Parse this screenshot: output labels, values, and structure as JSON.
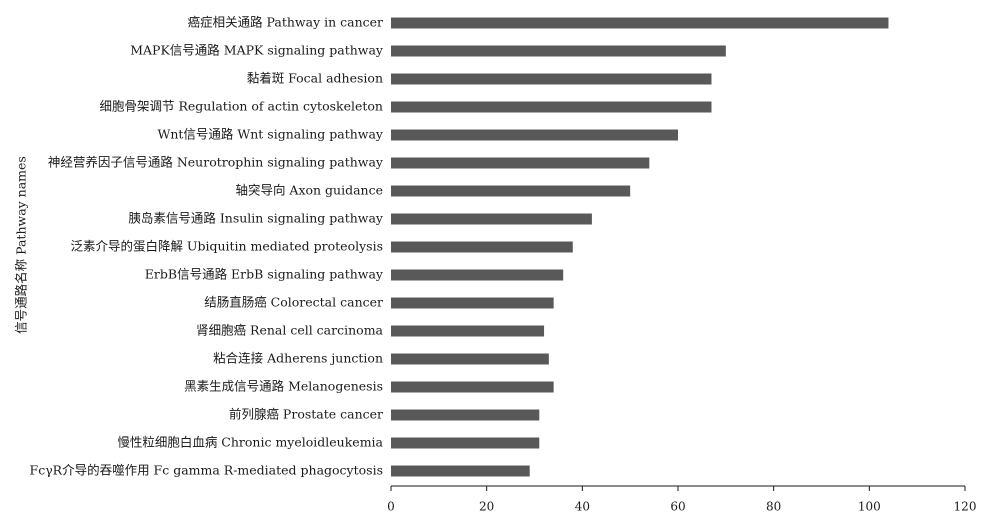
{
  "chart_data": {
    "type": "bar",
    "orientation": "horizontal",
    "title": "",
    "xlabel": "",
    "ylabel": "信号通路名称 Pathway names",
    "xlim": [
      0,
      120
    ],
    "xticks": [
      0,
      20,
      40,
      60,
      80,
      100,
      120
    ],
    "grid": false,
    "legend": "none",
    "bar_color": "#595959",
    "categories": [
      "癌症相关通路 Pathway in cancer",
      "MAPK信号通路 MAPK signaling pathway",
      "黏着斑 Focal adhesion",
      "细胞骨架调节 Regulation of actin cytoskeleton",
      "Wnt信号通路 Wnt signaling pathway",
      "神经营养因子信号通路 Neurotrophin signaling pathway",
      "轴突导向 Axon guidance",
      "胰岛素信号通路 Insulin signaling pathway",
      "泛素介导的蛋白降解 Ubiquitin mediated proteolysis",
      "ErbB信号通路 ErbB signaling pathway",
      "结肠直肠癌 Colorectal cancer",
      "肾细胞癌  Renal cell carcinoma",
      "粘合连接 Adherens junction",
      "黑素生成信号通路 Melanogenesis",
      "前列腺癌 Prostate cancer",
      "慢性粒细胞白血病 Chronic myeloidleukemia",
      "FcγR介导的吞噬作用 Fc gamma R-mediated phagocytosis"
    ],
    "values": [
      104,
      70,
      67,
      67,
      60,
      54,
      50,
      42,
      38,
      36,
      34,
      32,
      33,
      34,
      31,
      31,
      29
    ]
  }
}
